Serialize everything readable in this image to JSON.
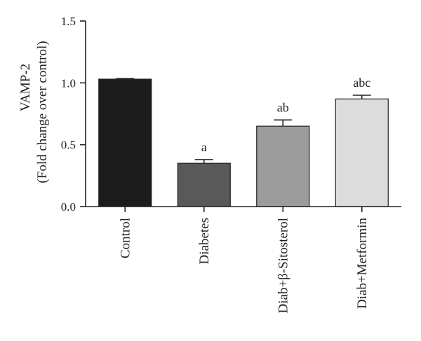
{
  "chart_data": {
    "type": "bar",
    "ylabel": [
      "VAMP-2",
      "(Fold change over control)"
    ],
    "ylim": [
      0,
      1.5
    ],
    "yticks": [
      0.0,
      0.5,
      1.0,
      1.5
    ],
    "ytick_labels": [
      "0.0",
      "0.5",
      "1.0",
      "1.5"
    ],
    "categories": [
      "Control",
      "Diabetes",
      "Diab+β-Sitosterol",
      "Diab+Metformin"
    ],
    "values": [
      1.03,
      0.35,
      0.65,
      0.87
    ],
    "errors": [
      0.005,
      0.03,
      0.05,
      0.03
    ],
    "significance": [
      "",
      "a",
      "ab",
      "abc"
    ],
    "colors": [
      "#1c1c1c",
      "#595959",
      "#9c9c9c",
      "#dcdcdc"
    ],
    "grid": false
  }
}
